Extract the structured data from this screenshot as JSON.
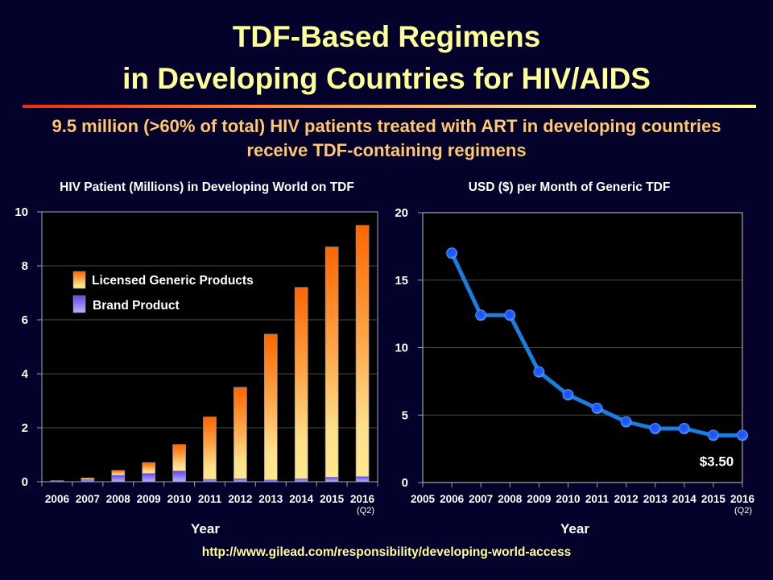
{
  "slide": {
    "title_line1": "TDF-Based Regimens",
    "title_line2": "in Developing Countries for HIV/AIDS",
    "subtitle_line1": "9.5 million (>60% of total) HIV patients treated with ART in developing countries",
    "subtitle_line2": "receive TDF-containing regimens",
    "source_url": "http://www.gilead.com/responsibility/developing-world-access",
    "colors": {
      "background": "#04022a",
      "title": "#ffff99",
      "subtitle": "#ffc870",
      "generic_top": "#ff6600",
      "generic_bottom": "#ffe88e",
      "brand_top": "#6a44ea",
      "brand_bottom": "#b4b4ff",
      "line": "#1a7ee0",
      "marker": "#1e5cff"
    }
  },
  "chart_data": [
    {
      "type": "bar",
      "stacked": true,
      "title": "HIV Patient (Millions) in Developing World on TDF",
      "xlabel": "Year",
      "ylabel": "",
      "categories": [
        "2006",
        "2007",
        "2008",
        "2009",
        "2010",
        "2011",
        "2012",
        "2013",
        "2014",
        "2015",
        "2016"
      ],
      "category_sublabels": {
        "2016": "(Q2)"
      },
      "ylim": [
        0,
        10
      ],
      "yticks": [
        0,
        2,
        4,
        6,
        8,
        10
      ],
      "grid": true,
      "legend_position": "upper-left",
      "legend": [
        "Licensed Generic Products",
        "Brand Product"
      ],
      "series": [
        {
          "name": "Brand Product",
          "values": [
            0.03,
            0.08,
            0.24,
            0.31,
            0.4,
            0.09,
            0.11,
            0.07,
            0.11,
            0.17,
            0.19
          ]
        },
        {
          "name": "Licensed Generic Products",
          "values": [
            0.01,
            0.06,
            0.18,
            0.4,
            0.98,
            2.31,
            3.39,
            5.4,
            7.09,
            8.53,
            9.31
          ]
        }
      ],
      "totals": [
        0.04,
        0.14,
        0.42,
        0.71,
        1.38,
        2.4,
        3.5,
        5.47,
        7.2,
        8.7,
        9.5
      ]
    },
    {
      "type": "line",
      "title": "USD ($) per Month of Generic TDF",
      "xlabel": "Year",
      "ylabel": "",
      "x": [
        2006,
        2007,
        2008,
        2009,
        2010,
        2011,
        2012,
        2013,
        2014,
        2015,
        2016
      ],
      "series": [
        {
          "name": "USD per month",
          "values": [
            17,
            12.4,
            12.4,
            8.2,
            6.5,
            5.5,
            4.5,
            4.0,
            4.0,
            3.5,
            3.5
          ]
        }
      ],
      "xlim": [
        2005,
        2016
      ],
      "xticks": [
        2005,
        2006,
        2007,
        2008,
        2009,
        2010,
        2011,
        2012,
        2013,
        2014,
        2015,
        2016
      ],
      "xtick_sublabels": {
        "2016": "(Q2)"
      },
      "ylim": [
        0,
        20
      ],
      "yticks": [
        0,
        5,
        10,
        15,
        20
      ],
      "grid": true,
      "annotations": [
        {
          "x": 2016,
          "text": "$3.50",
          "position": "below-last-point"
        }
      ]
    }
  ]
}
